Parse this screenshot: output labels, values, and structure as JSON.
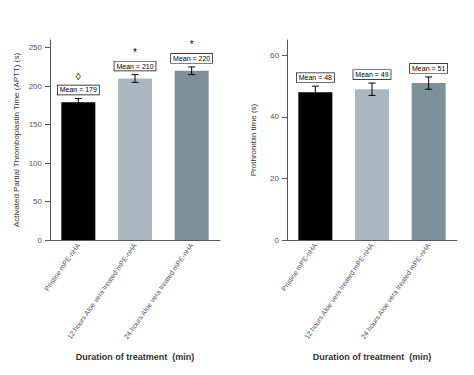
{
  "chart_data": [
    {
      "type": "bar",
      "categories": [
        "Pristine mPE-nHA",
        "12 hours Aloe vera treated mPE-nHA",
        "24 hours Aloe vera treated mPE-nHA"
      ],
      "values": [
        179,
        210,
        220
      ],
      "value_labels": [
        "Mean = 179",
        "Mean = 210",
        "Mean = 220"
      ],
      "errors": [
        5,
        5,
        5
      ],
      "colors": [
        "#000000",
        "#aab8c2",
        "#7d9099"
      ],
      "annotations": [
        "◊",
        "*",
        "*"
      ],
      "ylabel": "Activated Partial Thromboplastin Time (APTT) (s)",
      "xlabel": "Duration of treatment  (min)",
      "ylim": [
        0,
        260
      ],
      "yticks": [
        0,
        50,
        100,
        150,
        200,
        250
      ],
      "grid": false
    },
    {
      "type": "bar",
      "categories": [
        "Pristine mPE-nHA",
        "12 hours Aloe vera treated mPE-nHA",
        "24 hours Aloe vera treated mPE-nHA"
      ],
      "values": [
        48,
        49,
        51
      ],
      "value_labels": [
        "Mean = 48",
        "Mean = 49",
        "Mean = 51"
      ],
      "errors": [
        2,
        2,
        2
      ],
      "colors": [
        "#000000",
        "#aab8c2",
        "#7d9099"
      ],
      "ylabel": "Prothrombin time (s)",
      "xlabel": "Duration of treatment  (min)",
      "ylim": [
        0,
        65
      ],
      "yticks": [
        0,
        20,
        40,
        60
      ],
      "grid": false
    }
  ]
}
